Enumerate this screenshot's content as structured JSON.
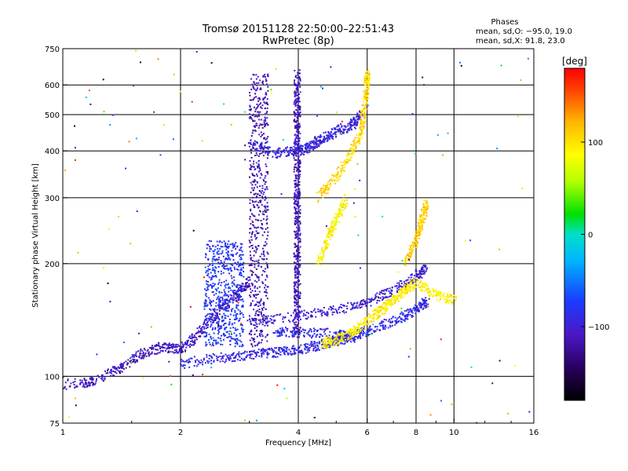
{
  "header": {
    "title_line1": "Tromsø 20151128 22:50:00–22:51:43",
    "title_line2": "RwPretec (8p)"
  },
  "stats": {
    "heading": "Phases",
    "line_o": "mean, sd,O: −95.0, 19.0",
    "line_x": "mean, sd,X:  91.8, 23.0"
  },
  "colorbar": {
    "unit": "[deg]",
    "range": [
      -180,
      180
    ],
    "ticks": [
      100,
      0,
      -100
    ],
    "tick_labels": [
      "100",
      "0",
      "−100"
    ]
  },
  "chart_data": {
    "type": "scatter",
    "xlabel": "Frequency [MHz]",
    "ylabel": "Stationary phase Virtual Height [km]",
    "xscale": "log",
    "yscale": "log",
    "xlim": [
      1,
      16
    ],
    "ylim": [
      75,
      750
    ],
    "grid": true,
    "xticks": [
      1,
      2,
      4,
      6,
      8,
      10,
      16
    ],
    "xtick_labels": [
      "1",
      "2",
      "4",
      "6",
      "8",
      "10",
      "16"
    ],
    "xgrid": [
      2,
      4,
      6,
      8,
      10
    ],
    "yticks": [
      75,
      100,
      200,
      300,
      400,
      500,
      600,
      750
    ],
    "ytick_labels": [
      "75",
      "100",
      "200",
      "300",
      "400",
      "500",
      "600",
      "750"
    ],
    "ygrid": [
      100,
      200,
      300,
      400,
      500,
      600
    ],
    "color_encoding": "phase [deg]",
    "series": [
      {
        "trace": [
          [
            1.0,
            95
          ],
          [
            1.2,
            97
          ],
          [
            1.4,
            105
          ],
          [
            1.6,
            115
          ],
          [
            1.8,
            120
          ],
          [
            2.0,
            118
          ],
          [
            2.2,
            128
          ],
          [
            2.5,
            150
          ],
          [
            2.8,
            165
          ],
          [
            3.0,
            180
          ]
        ],
        "phase": -110
      },
      {
        "trace": [
          [
            2.0,
            108
          ],
          [
            2.5,
            112
          ],
          [
            3.0,
            114
          ],
          [
            3.5,
            116
          ],
          [
            4.0,
            118
          ],
          [
            4.5,
            121
          ],
          [
            5.0,
            124
          ],
          [
            5.5,
            128
          ],
          [
            6.0,
            132
          ],
          [
            7.0,
            140
          ],
          [
            8.0,
            150
          ],
          [
            8.6,
            160
          ]
        ],
        "phase": -90
      },
      {
        "trace": [
          [
            3.0,
            140
          ],
          [
            4.0,
            145
          ],
          [
            5.0,
            150
          ],
          [
            6.0,
            158
          ],
          [
            7.0,
            170
          ],
          [
            8.0,
            185
          ],
          [
            8.5,
            195
          ]
        ],
        "phase": -100
      },
      {
        "trace": [
          [
            3.5,
            132
          ],
          [
            4.0,
            131
          ],
          [
            5.0,
            130
          ],
          [
            5.5,
            127
          ]
        ],
        "phase": -90
      },
      {
        "trace": [
          [
            3.0,
            420
          ],
          [
            3.5,
            395
          ],
          [
            4.0,
            400
          ],
          [
            4.3,
            410
          ],
          [
            4.6,
            430
          ],
          [
            5.0,
            450
          ],
          [
            5.5,
            470
          ],
          [
            5.8,
            500
          ]
        ],
        "phase": -95
      },
      {
        "trace": [
          [
            4.5,
            300
          ],
          [
            5.0,
            340
          ],
          [
            5.5,
            400
          ],
          [
            5.8,
            450
          ],
          [
            5.9,
            520
          ],
          [
            6.0,
            600
          ],
          [
            6.0,
            640
          ]
        ],
        "phase": 105
      },
      {
        "trace": [
          [
            4.5,
            200
          ],
          [
            4.8,
            240
          ],
          [
            5.0,
            260
          ],
          [
            5.3,
            300
          ]
        ],
        "phase": 90
      },
      {
        "trace": [
          [
            4.6,
            122
          ],
          [
            5.0,
            125
          ],
          [
            5.5,
            130
          ],
          [
            6.0,
            140
          ],
          [
            6.5,
            150
          ],
          [
            7.0,
            160
          ],
          [
            7.5,
            170
          ],
          [
            8.0,
            178
          ],
          [
            9.0,
            165
          ],
          [
            10,
            160
          ]
        ],
        "phase": 95
      },
      {
        "trace": [
          [
            7.5,
            200
          ],
          [
            8.0,
            230
          ],
          [
            8.3,
            260
          ],
          [
            8.5,
            290
          ]
        ],
        "phase": 110
      }
    ],
    "columns": [
      {
        "x": [
          3.0,
          3.35
        ],
        "y": [
          120,
          640
        ],
        "phase": -115
      },
      {
        "x": [
          3.9,
          4.05
        ],
        "y": [
          130,
          660
        ],
        "phase": -110
      },
      {
        "x": [
          2.3,
          2.9
        ],
        "y": [
          120,
          230
        ],
        "phase": -80
      }
    ]
  }
}
